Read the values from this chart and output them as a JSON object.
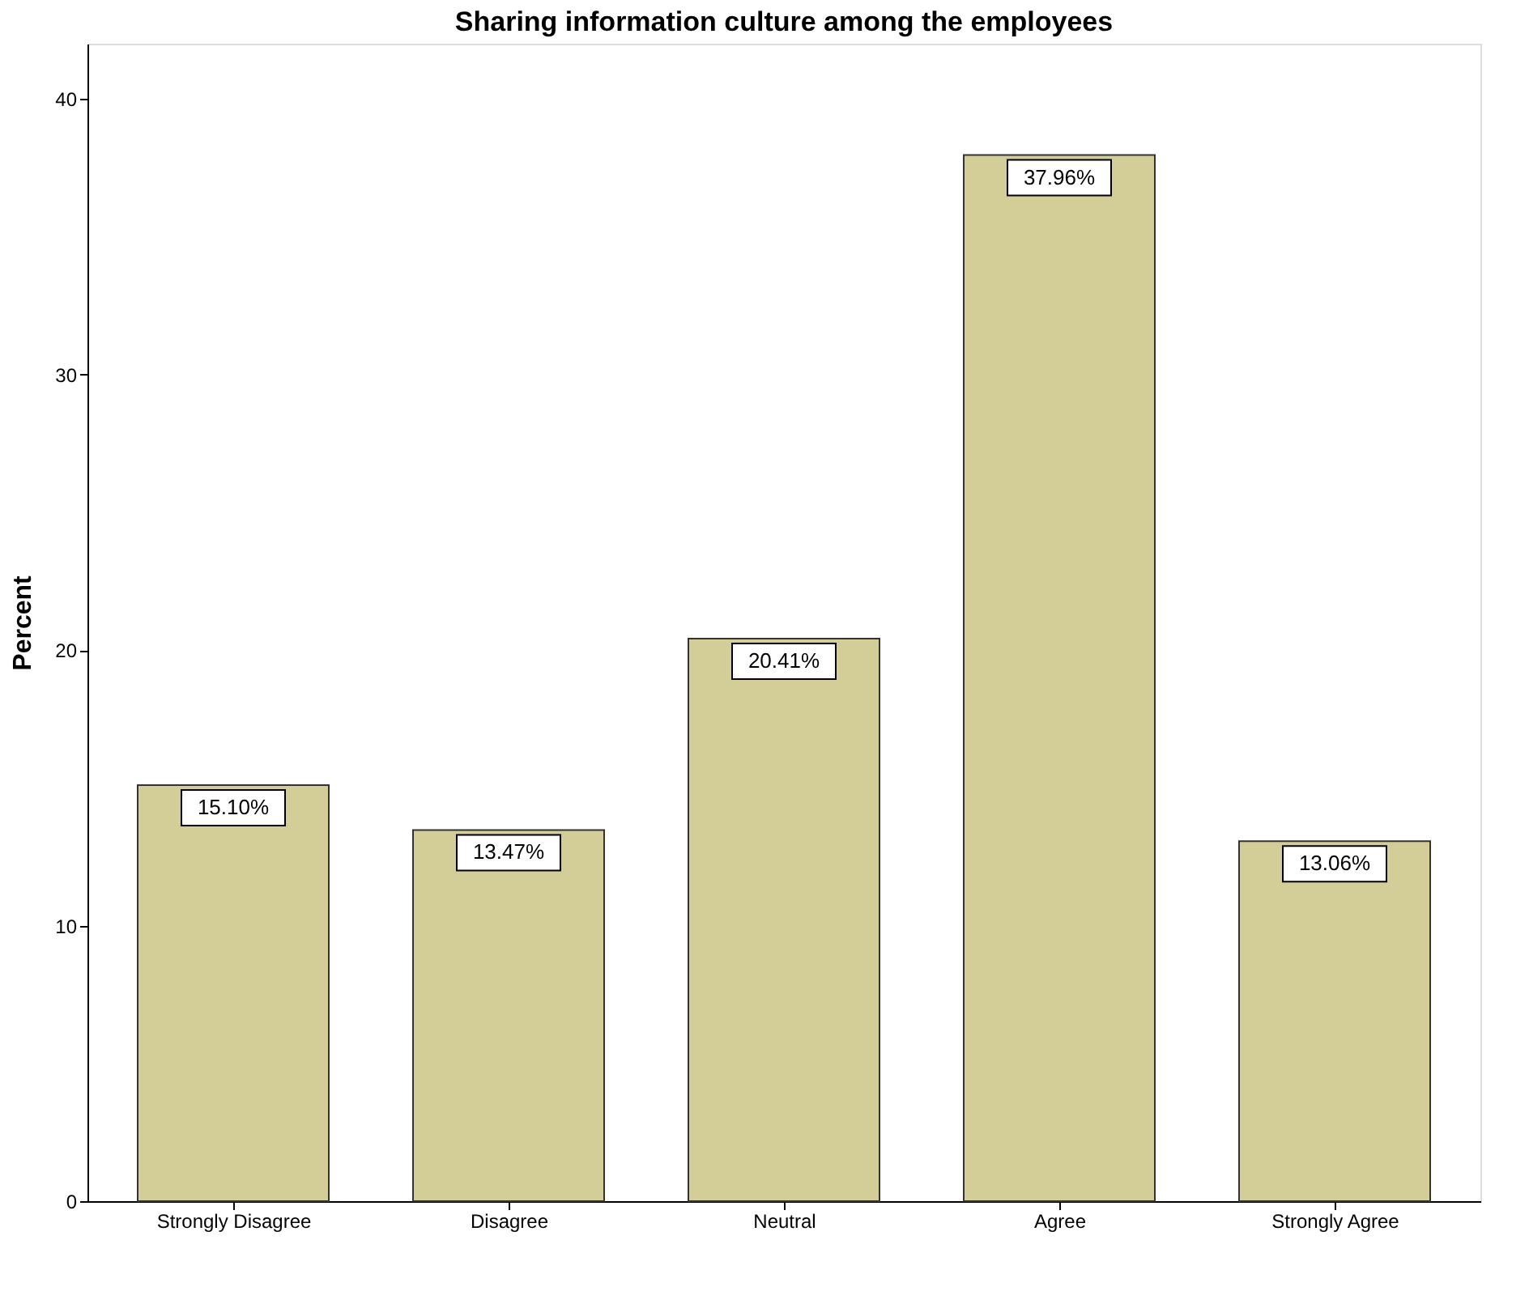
{
  "chart_data": {
    "type": "bar",
    "title": "Sharing information culture among the employees",
    "ylabel": "Percent",
    "categories": [
      "Strongly Disagree",
      "Disagree",
      "Neutral",
      "Agree",
      "Strongly Agree"
    ],
    "values": [
      15.1,
      13.47,
      20.41,
      37.96,
      13.06
    ],
    "value_labels": [
      "15.10%",
      "13.47%",
      "20.41%",
      "37.96%",
      "13.06%"
    ],
    "color": "#d3ce97",
    "ylim": [
      0,
      42
    ],
    "yticks": [
      0,
      10,
      20,
      30,
      40
    ],
    "grid": false
  }
}
